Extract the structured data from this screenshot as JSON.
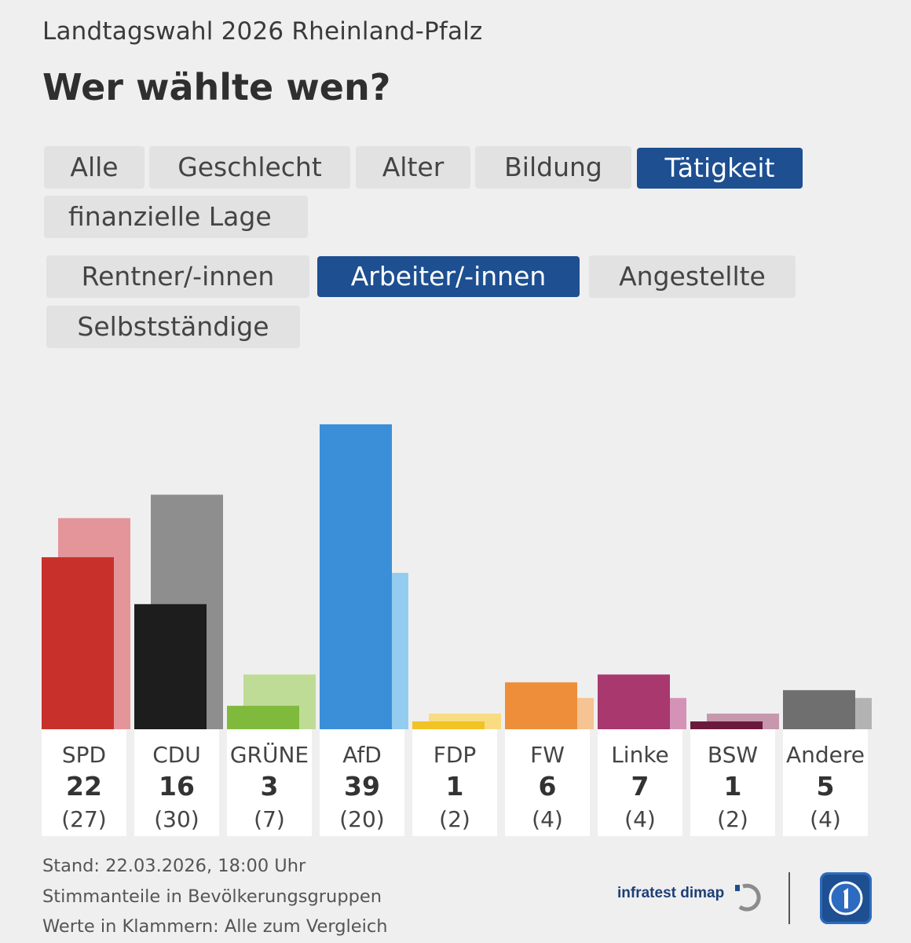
{
  "header": {
    "kicker": "Landtagswahl 2026 Rheinland-Pfalz",
    "title": "Wer wählte wen?"
  },
  "filters": {
    "categories": [
      {
        "label": "Alle",
        "active": false
      },
      {
        "label": "Geschlecht",
        "active": false
      },
      {
        "label": "Alter",
        "active": false
      },
      {
        "label": "Bildung",
        "active": false
      },
      {
        "label": "Tätigkeit",
        "active": true
      },
      {
        "label": "finanzielle Lage",
        "active": false
      }
    ],
    "groups": [
      {
        "label": "Rentner/-innen",
        "active": false
      },
      {
        "label": "Arbeiter/-innen",
        "active": true
      },
      {
        "label": "Angestellte",
        "active": false
      },
      {
        "label": "Selbstständige",
        "active": false
      }
    ]
  },
  "chart_data": {
    "type": "bar",
    "title": "Wer wählte wen?",
    "subtitle": "Arbeiter/-innen",
    "categories": [
      "SPD",
      "CDU",
      "GRÜNE",
      "AfD",
      "FDP",
      "FW",
      "Linke",
      "BSW",
      "Andere"
    ],
    "series": [
      {
        "name": "Arbeiter/-innen",
        "values": [
          22,
          16,
          3,
          39,
          1,
          6,
          7,
          1,
          5
        ],
        "labels": [
          "22",
          "16",
          "3",
          "39",
          "1",
          "6",
          "7",
          "1",
          "5"
        ]
      },
      {
        "name": "Alle",
        "values": [
          27,
          30,
          7,
          20,
          2,
          4,
          4,
          2,
          4
        ],
        "labels": [
          "(27)",
          "(30)",
          "(7)",
          "(20)",
          "(2)",
          "(4)",
          "(4)",
          "(2)",
          "(4)"
        ]
      }
    ],
    "colors": {
      "main": [
        "#c8312b",
        "#1d1d1d",
        "#7fba3c",
        "#3b8fd8",
        "#f2c325",
        "#ee8e3b",
        "#a8386e",
        "#6b1a3e",
        "#6f6f6f"
      ],
      "comparison": [
        "#e3959a",
        "#8e8e8e",
        "#bfdc96",
        "#94ccef",
        "#f9dc82",
        "#f6c392",
        "#d493b6",
        "#c697ad",
        "#b3b3b3"
      ]
    },
    "ylim": [
      0,
      42
    ],
    "xlabel": "",
    "ylabel": "",
    "grid": false,
    "legend": "none"
  },
  "footer": {
    "stand": "Stand: 22.03.2026, 18:00 Uhr",
    "note1": "Stimmanteile in Bevölkerungsgruppen",
    "note2": "Werte in Klammern: Alle zum Vergleich"
  },
  "branding": {
    "pollster": "infratest dimap",
    "broadcaster_logo": "ard-tagesschau-logo-icon",
    "pollster_icon": "infratest-dimap-icon"
  }
}
